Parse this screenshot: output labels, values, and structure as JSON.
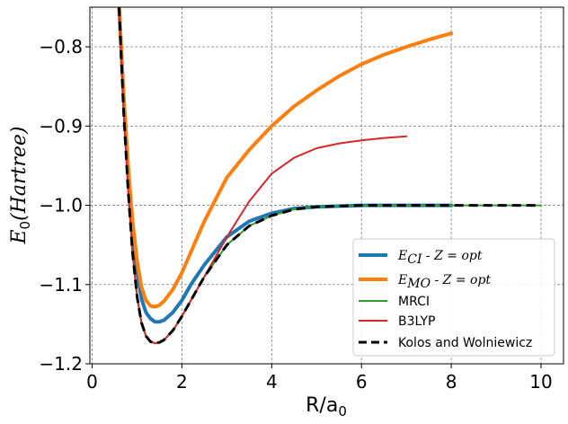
{
  "chart_data": {
    "type": "line",
    "title": "",
    "xlabel": "R/a",
    "xlabel_sub": "0",
    "ylabel_main": "E",
    "ylabel_sub": "0",
    "ylabel_rest": "(Hartree)",
    "xlim": [
      -0.05,
      10.5
    ],
    "ylim": [
      -1.2,
      -0.75
    ],
    "xticks": [
      0,
      2,
      4,
      6,
      8,
      10
    ],
    "yticks": [
      -0.8,
      -0.9,
      -1.0,
      -1.1,
      -1.2
    ],
    "xtick_labels": [
      "0",
      "2",
      "4",
      "6",
      "8",
      "10"
    ],
    "ytick_labels": [
      "−0.8",
      "−0.9",
      "−1.0",
      "−1.1",
      "−1.2"
    ],
    "grid": true,
    "legend_position": "lower-right",
    "series": [
      {
        "key": "eci",
        "name": "E_CI - Z = opt",
        "legend_main": "E",
        "legend_sub": "CI",
        "legend_rest": " - Z = opt",
        "color": "#1f77b4",
        "style": "solid",
        "width": "thick",
        "x": [
          0.6,
          0.7,
          0.8,
          0.9,
          1.0,
          1.1,
          1.2,
          1.3,
          1.4,
          1.5,
          1.6,
          1.8,
          2.0,
          2.2,
          2.5,
          3.0,
          3.5,
          4.0,
          4.5,
          5.0,
          6.0,
          7.0,
          8.0
        ],
        "y": [
          -0.75,
          -0.86,
          -0.95,
          -1.03,
          -1.083,
          -1.118,
          -1.135,
          -1.143,
          -1.147,
          -1.147,
          -1.145,
          -1.135,
          -1.12,
          -1.1,
          -1.075,
          -1.04,
          -1.02,
          -1.01,
          -1.004,
          -1.002,
          -1.0,
          -1.0,
          -1.0
        ]
      },
      {
        "key": "emo",
        "name": "E_MO - Z = opt",
        "legend_main": "E",
        "legend_sub": "MO",
        "legend_rest": " - Z = opt",
        "color": "#ff7f0e",
        "style": "solid",
        "width": "thick",
        "x": [
          0.6,
          0.7,
          0.8,
          0.9,
          1.0,
          1.1,
          1.2,
          1.3,
          1.4,
          1.5,
          1.6,
          1.8,
          2.0,
          2.5,
          3.0,
          3.5,
          4.0,
          4.5,
          5.0,
          5.5,
          6.0,
          6.5,
          7.0,
          7.5,
          8.0
        ],
        "y": [
          -0.75,
          -0.86,
          -0.95,
          -1.02,
          -1.07,
          -1.103,
          -1.12,
          -1.127,
          -1.128,
          -1.126,
          -1.121,
          -1.106,
          -1.085,
          -1.02,
          -0.965,
          -0.93,
          -0.9,
          -0.875,
          -0.855,
          -0.837,
          -0.822,
          -0.81,
          -0.8,
          -0.791,
          -0.783
        ]
      },
      {
        "key": "mrci",
        "name": "MRCI",
        "color": "#2ca02c",
        "style": "solid",
        "width": "thin",
        "x": [
          0.6,
          0.7,
          0.8,
          0.9,
          1.0,
          1.1,
          1.2,
          1.3,
          1.4,
          1.5,
          1.6,
          1.8,
          2.0,
          2.2,
          2.5,
          3.0,
          3.5,
          4.0,
          4.5,
          5.0,
          6.0,
          7.0,
          8.0,
          9.0,
          10.0
        ],
        "y": [
          -0.75,
          -0.88,
          -0.98,
          -1.06,
          -1.115,
          -1.148,
          -1.165,
          -1.172,
          -1.174,
          -1.173,
          -1.17,
          -1.158,
          -1.14,
          -1.12,
          -1.09,
          -1.05,
          -1.026,
          -1.013,
          -1.005,
          -1.002,
          -1.0,
          -1.0,
          -1.0,
          -1.0,
          -1.0
        ]
      },
      {
        "key": "b3lyp",
        "name": "B3LYP",
        "color": "#d62728",
        "style": "solid",
        "width": "thin",
        "x": [
          0.6,
          0.7,
          0.8,
          0.9,
          1.0,
          1.1,
          1.2,
          1.3,
          1.4,
          1.5,
          1.6,
          1.8,
          2.0,
          2.2,
          2.5,
          3.0,
          3.5,
          4.0,
          4.5,
          5.0,
          5.5,
          6.0,
          6.5,
          7.0
        ],
        "y": [
          -0.75,
          -0.88,
          -0.98,
          -1.06,
          -1.115,
          -1.148,
          -1.165,
          -1.172,
          -1.174,
          -1.173,
          -1.17,
          -1.158,
          -1.14,
          -1.12,
          -1.09,
          -1.04,
          -0.995,
          -0.96,
          -0.94,
          -0.928,
          -0.922,
          -0.918,
          -0.915,
          -0.913
        ]
      },
      {
        "key": "kw",
        "name": "Kolos and Wolniewicz",
        "color": "#000000",
        "style": "dashed",
        "width": "thick",
        "x": [
          0.6,
          0.7,
          0.8,
          0.9,
          1.0,
          1.1,
          1.2,
          1.3,
          1.4,
          1.5,
          1.6,
          1.8,
          2.0,
          2.2,
          2.5,
          3.0,
          3.5,
          4.0,
          4.5,
          5.0,
          6.0,
          7.0,
          8.0,
          9.0,
          9.9
        ],
        "y": [
          -0.75,
          -0.88,
          -0.98,
          -1.06,
          -1.115,
          -1.148,
          -1.165,
          -1.172,
          -1.174,
          -1.173,
          -1.17,
          -1.158,
          -1.14,
          -1.12,
          -1.09,
          -1.05,
          -1.026,
          -1.013,
          -1.005,
          -1.002,
          -1.0,
          -1.0,
          -1.0,
          -1.0,
          -1.0
        ]
      }
    ]
  }
}
